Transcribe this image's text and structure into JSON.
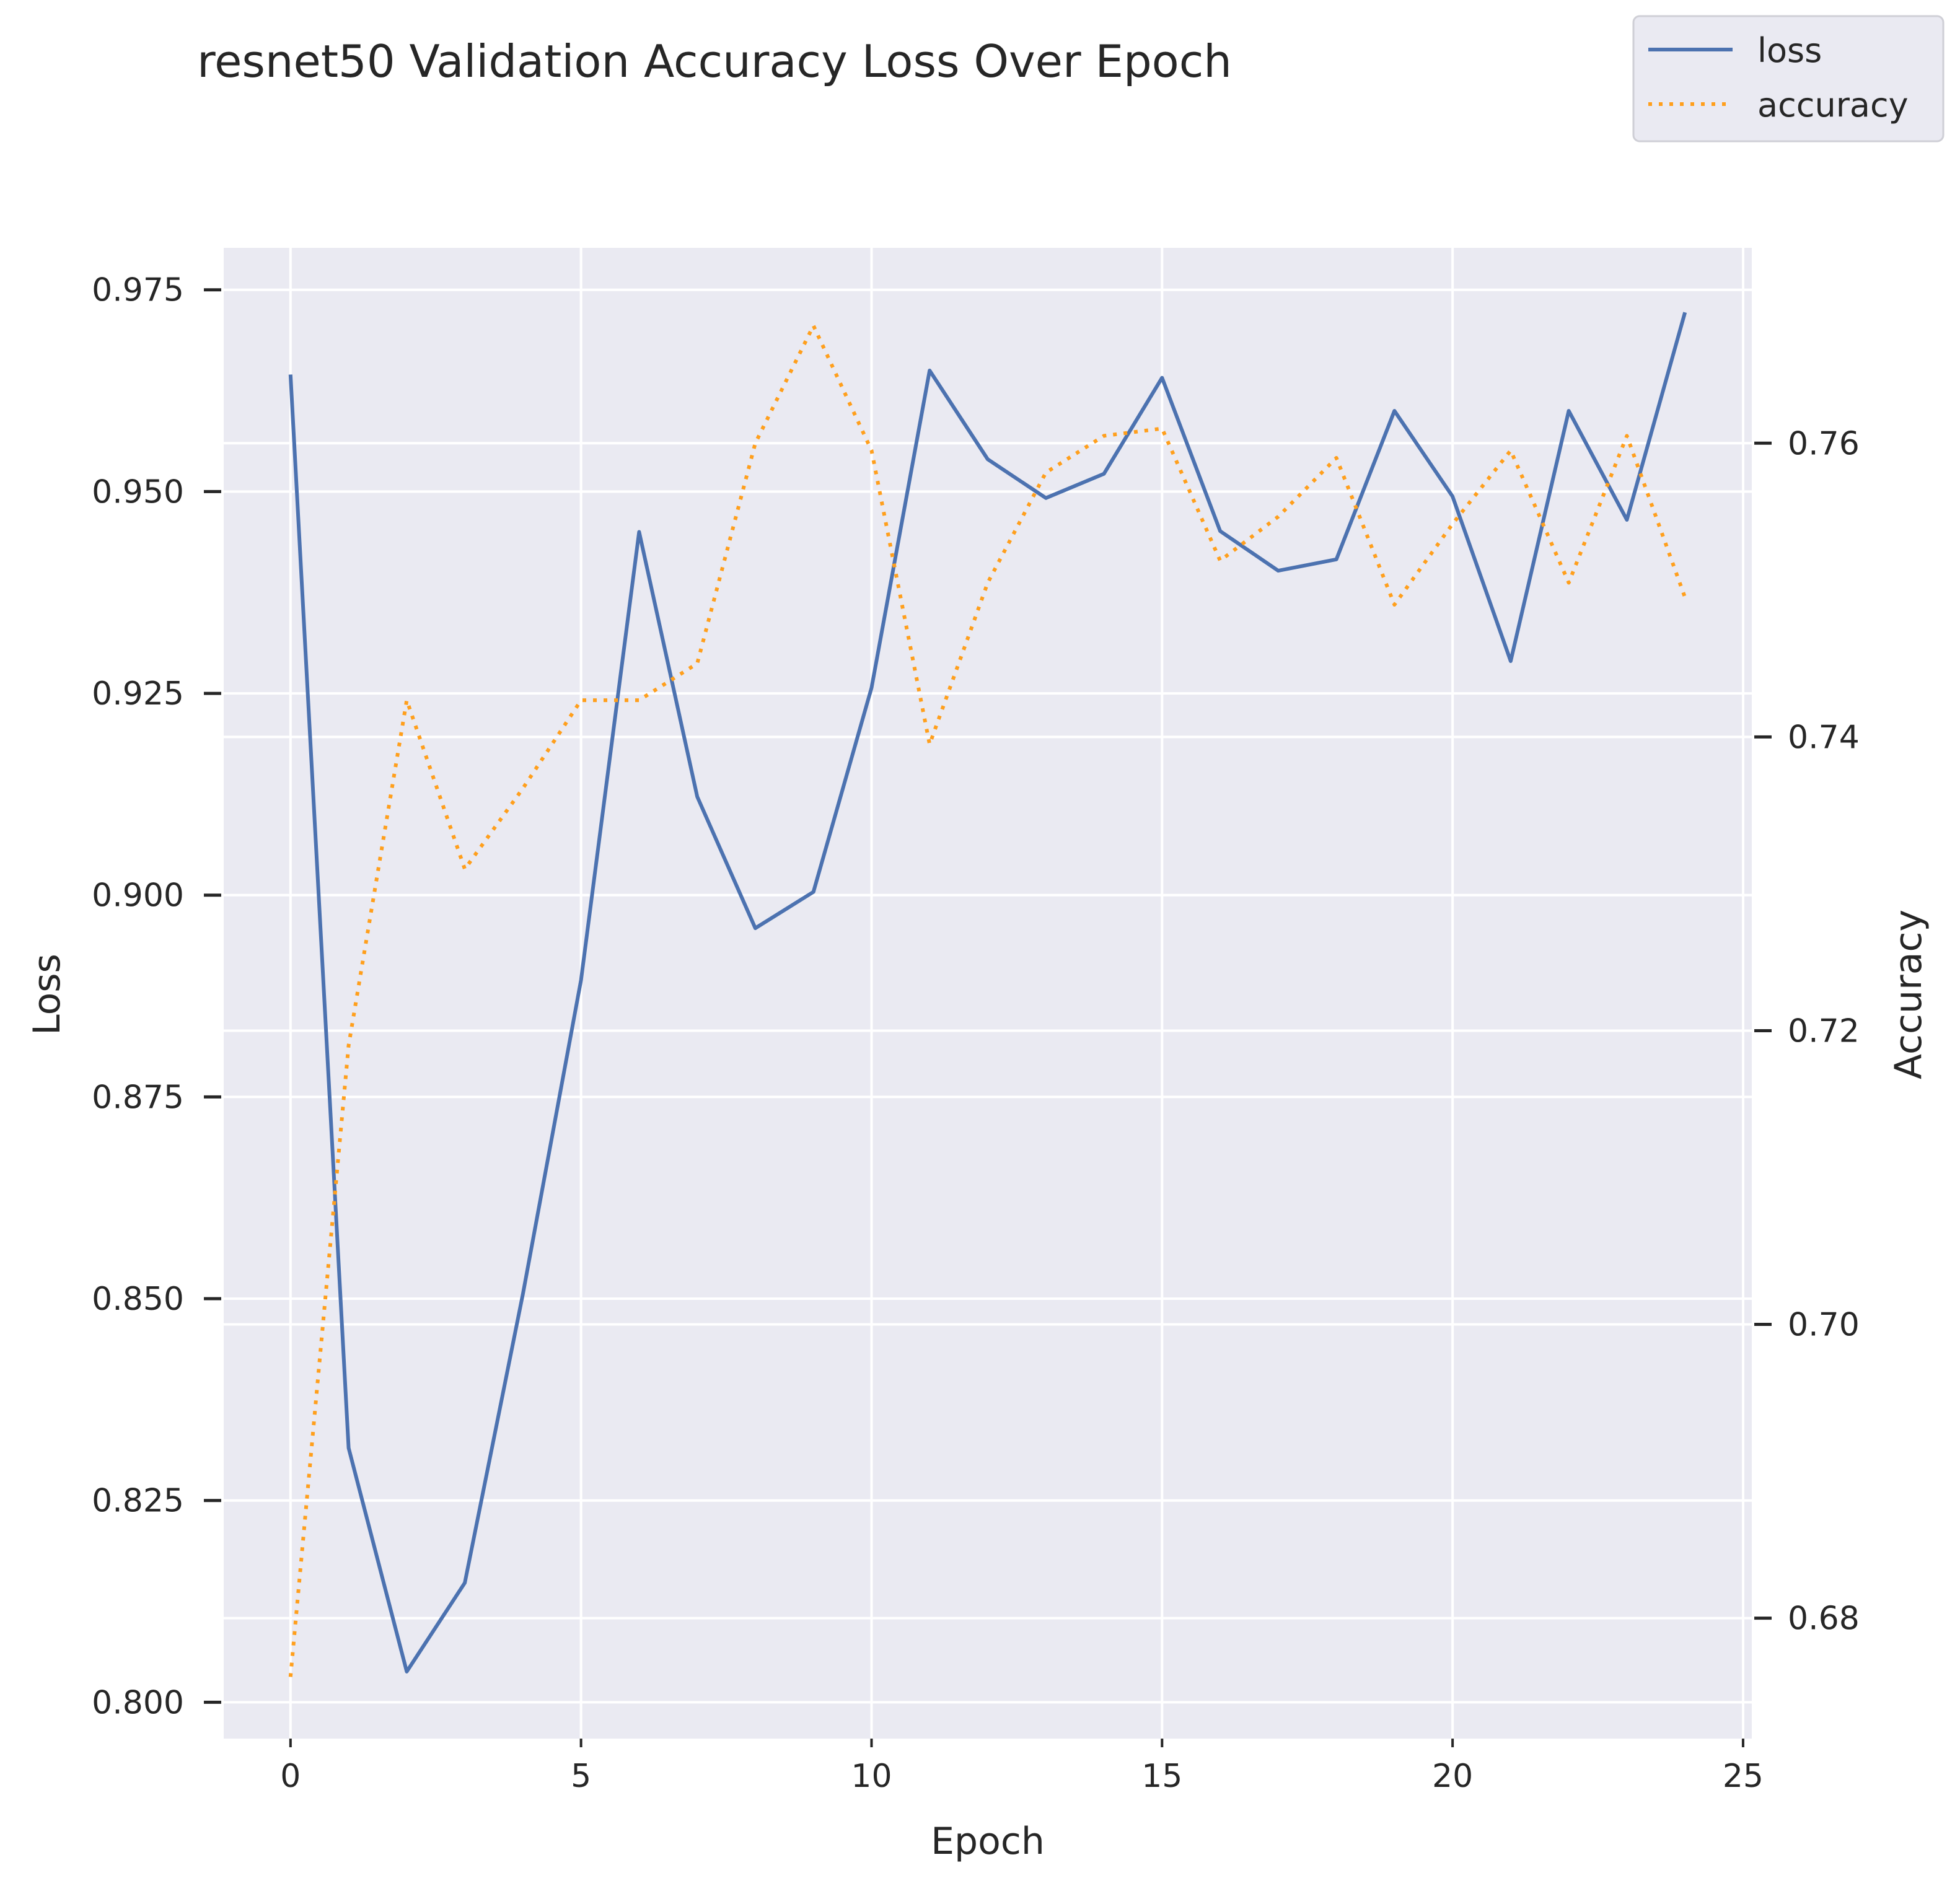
{
  "chart_data": {
    "type": "line",
    "title": "resnet50 Validation Accuracy Loss Over Epoch",
    "xlabel": "Epoch",
    "ylabel": "Loss",
    "y2label": "Accuracy",
    "xlim": [
      -1.15,
      25.15
    ],
    "ylim": [
      0.7955,
      0.9802
    ],
    "y2lim": [
      0.6718,
      0.7733
    ],
    "xticks": [
      0,
      5,
      10,
      15,
      20,
      25
    ],
    "yticks": [
      0.8,
      0.825,
      0.85,
      0.875,
      0.9,
      0.925,
      0.95,
      0.975
    ],
    "y2ticks": [
      0.68,
      0.7,
      0.72,
      0.74,
      0.76
    ],
    "xtick_labels": [
      "0",
      "5",
      "10",
      "15",
      "20",
      "25"
    ],
    "ytick_labels": [
      "0.800",
      "0.825",
      "0.850",
      "0.875",
      "0.900",
      "0.925",
      "0.950",
      "0.975"
    ],
    "y2tick_labels": [
      "0.68",
      "0.70",
      "0.72",
      "0.74",
      "0.76"
    ],
    "grid": true,
    "legend_position": "top-right",
    "x": [
      0,
      1,
      2,
      3,
      4,
      5,
      6,
      7,
      8,
      9,
      10,
      11,
      12,
      13,
      14,
      15,
      16,
      17,
      18,
      19,
      20,
      21,
      22,
      23,
      24
    ],
    "series": [
      {
        "name": "loss",
        "axis": "left",
        "color": "#4c72b0",
        "style": "solid",
        "values": [
          0.9645,
          0.8315,
          0.8038,
          0.8148,
          0.8506,
          0.8895,
          0.945,
          0.9122,
          0.8959,
          0.9004,
          0.9257,
          0.965,
          0.954,
          0.9492,
          0.9522,
          0.9641,
          0.9451,
          0.9402,
          0.9416,
          0.96,
          0.9494,
          0.929,
          0.96,
          0.9465,
          0.9722
        ]
      },
      {
        "name": "accuracy",
        "axis": "right",
        "color": "#ff9f1c",
        "style": "dotted",
        "values": [
          0.676,
          0.719,
          0.7425,
          0.731,
          0.7365,
          0.7425,
          0.7425,
          0.745,
          0.76,
          0.768,
          0.7595,
          0.7395,
          0.7505,
          0.758,
          0.7605,
          0.761,
          0.752,
          0.755,
          0.759,
          0.749,
          0.7545,
          0.7595,
          0.7505,
          0.7605,
          0.7495
        ]
      }
    ]
  }
}
